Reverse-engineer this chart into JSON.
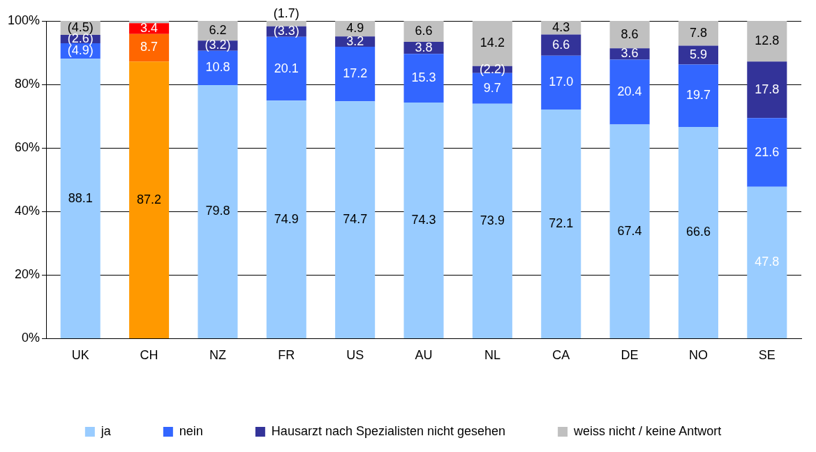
{
  "chart_data": {
    "type": "bar",
    "stacked": true,
    "categories": [
      "UK",
      "CH",
      "NZ",
      "FR",
      "US",
      "AU",
      "NL",
      "CA",
      "DE",
      "NO",
      "SE"
    ],
    "series": [
      {
        "name": "ja",
        "color": "#99ccff",
        "colors": [
          "#99ccff",
          "#ff9900",
          "#99ccff",
          "#99ccff",
          "#99ccff",
          "#99ccff",
          "#99ccff",
          "#99ccff",
          "#99ccff",
          "#99ccff",
          "#99ccff"
        ],
        "values": [
          88.1,
          87.2,
          79.8,
          74.9,
          74.7,
          74.3,
          73.9,
          72.1,
          67.4,
          66.6,
          47.8
        ],
        "value_labels": [
          "88.1",
          "87.2",
          "79.8",
          "74.9",
          "74.7",
          "74.3",
          "73.9",
          "72.1",
          "67.4",
          "66.6",
          "47.8"
        ]
      },
      {
        "name": "nein",
        "color": "#3366ff",
        "colors": [
          "#3366ff",
          "#ff6600",
          "#3366ff",
          "#3366ff",
          "#3366ff",
          "#3366ff",
          "#3366ff",
          "#3366ff",
          "#3366ff",
          "#3366ff",
          "#3366ff"
        ],
        "values": [
          4.9,
          8.7,
          10.8,
          20.1,
          17.2,
          15.3,
          9.7,
          17.0,
          20.4,
          19.7,
          21.6
        ],
        "value_labels": [
          "(4.9)",
          "8.7",
          "10.8",
          "20.1",
          "17.2",
          "15.3",
          "9.7",
          "17.0",
          "20.4",
          "19.7",
          "21.6"
        ]
      },
      {
        "name": "Hausarzt nach Spezialisten nicht gesehen",
        "color": "#333399",
        "colors": [
          "#333399",
          "#ff0000",
          "#333399",
          "#333399",
          "#333399",
          "#333399",
          "#333399",
          "#333399",
          "#333399",
          "#333399",
          "#333399"
        ],
        "values": [
          2.6,
          3.4,
          3.2,
          3.3,
          3.2,
          3.8,
          2.2,
          6.6,
          3.6,
          5.9,
          17.8
        ],
        "value_labels": [
          "(2.6)",
          "3.4",
          "(3.2)",
          "(3.3)",
          "3.2",
          "3.8",
          "(2.2)",
          "6.6",
          "3.6",
          "5.9",
          "17.8"
        ]
      },
      {
        "name": "weiss nicht / keine Antwort",
        "color": "#c0c0c0",
        "values": [
          4.5,
          0.7,
          6.2,
          1.7,
          4.9,
          6.6,
          14.2,
          4.3,
          8.6,
          7.8,
          12.8
        ],
        "value_labels": [
          "(4.5)",
          null,
          "6.2",
          "(1.7)",
          "4.9",
          "6.6",
          "14.2",
          "4.3",
          "8.6",
          "7.8",
          "12.8"
        ]
      }
    ],
    "ylim": [
      0,
      100
    ],
    "yticks": [
      {
        "value": 0,
        "label": "0%"
      },
      {
        "value": 20,
        "label": "20%"
      },
      {
        "value": 40,
        "label": "40%"
      },
      {
        "value": 60,
        "label": "60%"
      },
      {
        "value": 80,
        "label": "80%"
      },
      {
        "value": 100,
        "label": "100%"
      }
    ],
    "grid": "y",
    "legend": "bottom"
  }
}
